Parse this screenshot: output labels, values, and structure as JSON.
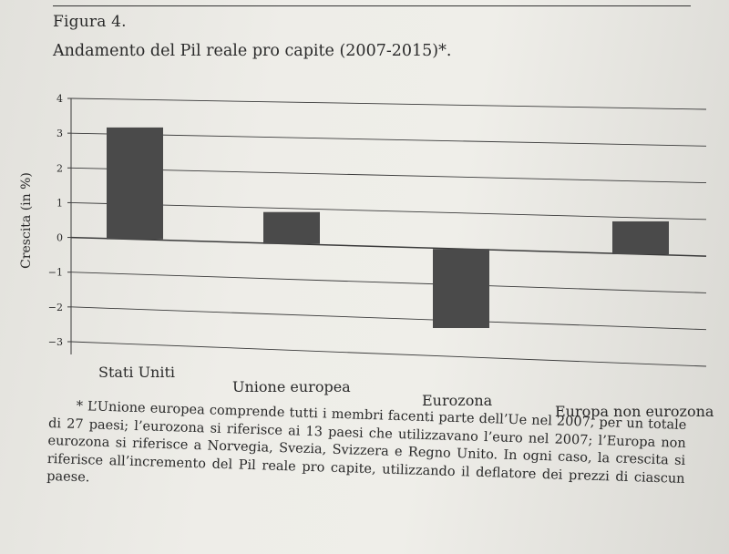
{
  "figure_label": "Figura 4.",
  "figure_title": "Andamento del Pil reale pro capite (2007-2015)*.",
  "chart_data": {
    "type": "bar",
    "ylabel": "Crescita (in %)",
    "ylim": [
      -3,
      4
    ],
    "yticks": [
      4,
      3,
      2,
      1,
      0,
      -1,
      -2,
      -3
    ],
    "ytick_labels": [
      "4",
      "3",
      "2",
      "1",
      "0",
      "−1",
      "−2",
      "−3"
    ],
    "grid": true,
    "categories": [
      "Stati Uniti",
      "Unione europea",
      "Eurozona",
      "Europa non eurozona"
    ],
    "values": [
      3.2,
      0.9,
      -2.2,
      0.9
    ],
    "bar_color": "#4a4a4a"
  },
  "footnote": "* L’Unione europea comprende tutti i membri facenti parte dell’Ue nel 2007, per un totale di 27 paesi; l’eurozona si riferisce ai 13 paesi che utilizzavano l’euro nel 2007; l’Europa non eurozona si riferisce a Norvegia, Svezia, Svizzera e Regno Unito. In ogni caso, la crescita si riferisce all’incremento del Pil reale pro capite, utilizzando il deflatore dei prezzi di ciascun paese."
}
